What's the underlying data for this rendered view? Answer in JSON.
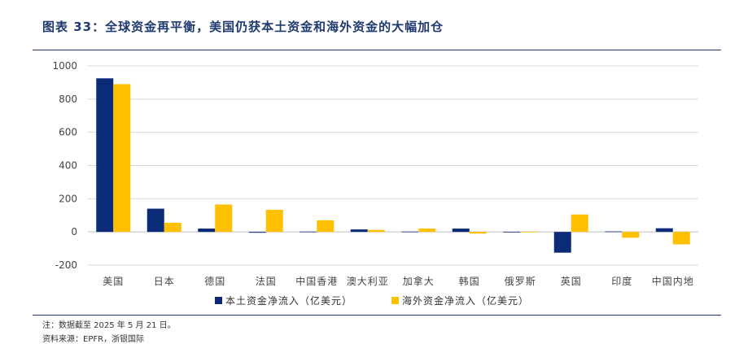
{
  "title": "图表 33：全球资金再平衡，美国仍获本土资金和海外资金的大幅加仓",
  "note": "注：数据截至 2025 年 5 月 21 日。",
  "source": "资料来源：EPFR，浙银国际",
  "chart_data": {
    "type": "bar",
    "categories": [
      "美国",
      "日本",
      "德国",
      "法国",
      "中国香港",
      "澳大利亚",
      "加拿大",
      "韩国",
      "俄罗斯",
      "英国",
      "印度",
      "中国内地"
    ],
    "series": [
      {
        "name": "本土资金净流入（亿美元）",
        "color": "#0b2a78",
        "values": [
          925,
          140,
          20,
          -5,
          2,
          15,
          2,
          20,
          1,
          -125,
          3,
          22
        ]
      },
      {
        "name": "海外资金净流入（亿美元）",
        "color": "#ffc000",
        "values": [
          890,
          55,
          165,
          133,
          70,
          12,
          20,
          -10,
          1,
          105,
          -35,
          -75
        ]
      }
    ],
    "yticks": [
      -200,
      0,
      200,
      400,
      600,
      800,
      1000
    ],
    "ylim": [
      -200,
      1000
    ],
    "grid": true,
    "legend": "bottom"
  }
}
